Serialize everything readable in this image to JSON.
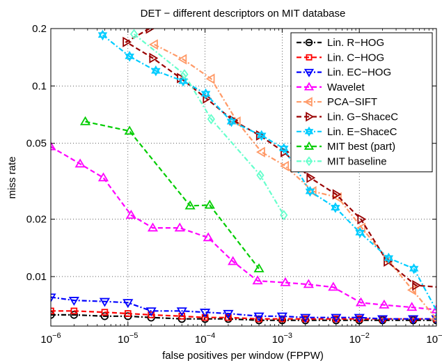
{
  "chart_data": {
    "type": "line",
    "title": "DET − different descriptors on MIT database",
    "xlabel": "false positives per window (FPPW)",
    "ylabel": "miss rate",
    "x_scale": "log",
    "y_scale": "log",
    "xlim": [
      1e-06,
      0.1
    ],
    "ylim": [
      0.0055,
      0.2
    ],
    "x_ticks": [
      {
        "value": 1e-06,
        "base": "10",
        "exp": "−6"
      },
      {
        "value": 1e-05,
        "base": "10",
        "exp": "−5"
      },
      {
        "value": 0.0001,
        "base": "10",
        "exp": "−4"
      },
      {
        "value": 0.001,
        "base": "10",
        "exp": "−3"
      },
      {
        "value": 0.01,
        "base": "10",
        "exp": "−2"
      },
      {
        "value": 0.1,
        "base": "10",
        "exp": "−1"
      }
    ],
    "y_ticks": [
      {
        "value": 0.01,
        "label": "0.01"
      },
      {
        "value": 0.02,
        "label": "0.02"
      },
      {
        "value": 0.05,
        "label": "0.05"
      },
      {
        "value": 0.1,
        "label": "0.1"
      },
      {
        "value": 0.2,
        "label": "0.2"
      }
    ],
    "grid": true,
    "legend_position": "top-right",
    "series": [
      {
        "name": "Lin. R−HOG",
        "color": "#000000",
        "dash": "dashdot",
        "marker": "circle",
        "x": [
          1e-06,
          2e-06,
          5e-06,
          1e-05,
          2e-05,
          5e-05,
          0.0001,
          0.0002,
          0.0005,
          0.001,
          0.002,
          0.005,
          0.01,
          0.02,
          0.05,
          0.1
        ],
        "y": [
          0.0063,
          0.0063,
          0.0062,
          0.0062,
          0.0061,
          0.006,
          0.006,
          0.006,
          0.0059,
          0.0059,
          0.0059,
          0.0059,
          0.0059,
          0.0059,
          0.0059,
          0.0059
        ]
      },
      {
        "name": "Lin. C−HOG",
        "color": "#ff0000",
        "dash": "dashed",
        "marker": "square",
        "x": [
          1e-06,
          2e-06,
          5e-06,
          1e-05,
          2e-05,
          5e-05,
          0.0001,
          0.0002,
          0.0005,
          0.001,
          0.002,
          0.005,
          0.01,
          0.02,
          0.05,
          0.1
        ],
        "y": [
          0.0066,
          0.0066,
          0.0065,
          0.0064,
          0.0063,
          0.0062,
          0.0061,
          0.0061,
          0.006,
          0.006,
          0.006,
          0.006,
          0.006,
          0.006,
          0.006,
          0.006
        ]
      },
      {
        "name": "Lin. EC−HOG",
        "color": "#0000ff",
        "dash": "dashdot",
        "marker": "triangle-down",
        "x": [
          1e-06,
          2e-06,
          5e-06,
          1e-05,
          2e-05,
          5e-05,
          0.0001,
          0.0002,
          0.0005,
          0.001,
          0.002,
          0.005,
          0.01,
          0.02,
          0.05,
          0.1
        ],
        "y": [
          0.0078,
          0.0075,
          0.0074,
          0.0073,
          0.0066,
          0.0066,
          0.0065,
          0.0064,
          0.0062,
          0.0062,
          0.0061,
          0.0061,
          0.0061,
          0.006,
          0.006,
          0.006
        ]
      },
      {
        "name": "Wavelet",
        "color": "#ff00ff",
        "dash": "dashed",
        "marker": "triangle-up",
        "x": [
          1e-06,
          2.4e-06,
          4.8e-06,
          1.1e-05,
          2.1e-05,
          4.7e-05,
          0.00011,
          0.00023,
          0.00048,
          0.0011,
          0.0022,
          0.0046,
          0.0105,
          0.021,
          0.048,
          0.1
        ],
        "y": [
          0.048,
          0.039,
          0.033,
          0.021,
          0.018,
          0.018,
          0.016,
          0.012,
          0.0095,
          0.0093,
          0.0091,
          0.0088,
          0.0073,
          0.0071,
          0.0069,
          0.0067
        ]
      },
      {
        "name": "PCA−SIFT",
        "color": "#ff9966",
        "dash": "dashdot",
        "marker": "triangle-left",
        "x": [
          2.2e-05,
          5.2e-05,
          0.00012,
          0.00026,
          0.00054,
          0.0011,
          0.0025,
          0.0053,
          0.0108,
          0.024,
          0.049,
          0.1
        ],
        "y": [
          0.165,
          0.138,
          0.109,
          0.065,
          0.045,
          0.038,
          0.028,
          0.026,
          0.018,
          0.0121,
          0.0085,
          0.006
        ]
      },
      {
        "name": "Lin. G−ShaceC",
        "color": "#990000",
        "dash": "dashed",
        "marker": "triangle-right",
        "x": [
          1.9e-05,
          9.5e-06,
          2.1e-05,
          4.8e-05,
          0.000104,
          0.00023,
          0.00051,
          0.00106,
          0.0023,
          0.005,
          0.0105,
          0.023,
          0.054,
          0.11
        ],
        "y": [
          0.2,
          0.17,
          0.14,
          0.11,
          0.086,
          0.066,
          0.055,
          0.045,
          0.033,
          0.027,
          0.02,
          0.012,
          0.009,
          0.0088
        ]
      },
      {
        "name": "Lin. E−ShaceC",
        "color": "#00ccff",
        "dash": "dashdot",
        "marker": "hexagram",
        "x": [
          4.7e-06,
          1.05e-05,
          2.3e-05,
          5.2e-05,
          0.000102,
          0.00022,
          0.00054,
          0.00105,
          0.0023,
          0.0049,
          0.0102,
          0.024,
          0.051,
          0.11
        ],
        "y": [
          0.185,
          0.143,
          0.12,
          0.106,
          0.091,
          0.065,
          0.055,
          0.047,
          0.028,
          0.023,
          0.017,
          0.0125,
          0.011,
          0.0062
        ]
      },
      {
        "name": "MIT best (part)",
        "color": "#00cc00",
        "dash": "dashed",
        "marker": "triangle-up",
        "x": [
          2.8e-06,
          1.05e-05,
          6.4e-05,
          0.000115,
          0.0005
        ],
        "y": [
          0.065,
          0.058,
          0.0235,
          0.0237,
          0.011
        ]
      },
      {
        "name": "MIT baseline",
        "color": "#66ffcc",
        "dash": "dashdot",
        "marker": "diamond",
        "x": [
          1.2e-05,
          5.4e-05,
          0.00012,
          0.00052,
          0.00105
        ],
        "y": [
          0.187,
          0.115,
          0.067,
          0.034,
          0.021
        ]
      }
    ]
  }
}
